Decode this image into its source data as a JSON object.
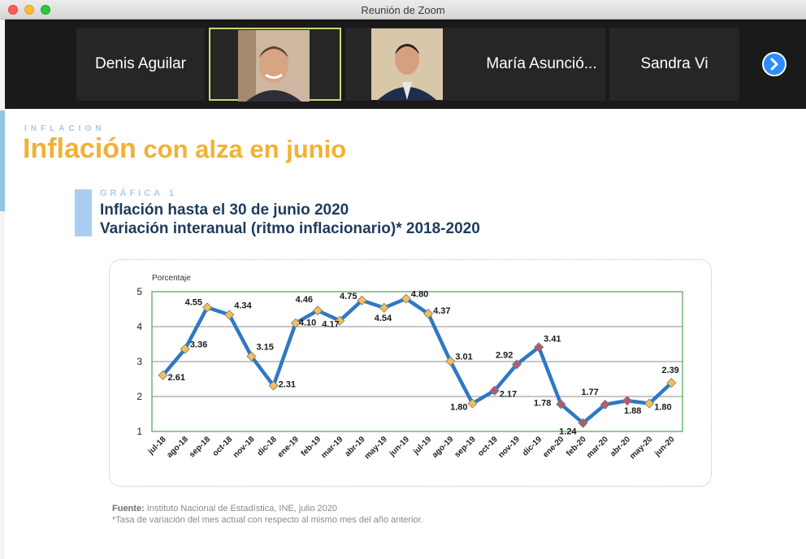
{
  "window": {
    "title": "Reunión de Zoom"
  },
  "participants": [
    {
      "name": "Denis Aguilar"
    },
    {
      "name": "",
      "video": true,
      "active": true
    },
    {
      "name": "",
      "video": true,
      "active": false
    },
    {
      "name": "María Asunció..."
    },
    {
      "name": "Sandra Vi"
    }
  ],
  "slide": {
    "kicker": "INFLACION",
    "headline_big": "Inflación",
    "headline_rest": " con alza en junio",
    "graph_label": "GRÁFICA 1",
    "title_line1": "Inflación hasta el 30 de junio 2020",
    "title_line2": "Variación interanual (ritmo inflacionario)* 2018-2020",
    "source_label": "Fuente:",
    "source_text": " Instituto Nacional de Estadística, INE, julio 2020",
    "footnote": "*Tasa de variación del mes actual con respecto al mismo mes del año anterior."
  },
  "chart_data": {
    "type": "line",
    "ylabel": "Porcentaje",
    "ylim": [
      1,
      5
    ],
    "yticks": [
      1,
      2,
      3,
      4,
      5
    ],
    "grid": true,
    "categories": [
      "jul-18",
      "ago-18",
      "sep-18",
      "oct-18",
      "nov-18",
      "dic-18",
      "ene-19",
      "feb-19",
      "mar-19",
      "abr-19",
      "may-19",
      "jun-19",
      "jul-19",
      "ago-19",
      "sep-19",
      "oct-19",
      "nov-19",
      "dic-19",
      "ene-20",
      "feb-20",
      "mar-20",
      "abr-20",
      "may-20",
      "jun-20"
    ],
    "series": [
      {
        "values": [
          2.61,
          3.36,
          4.55,
          4.34,
          3.15,
          2.31,
          4.1,
          4.46,
          4.17,
          4.75,
          4.54,
          4.8,
          4.37,
          3.01,
          1.8,
          2.17,
          2.92,
          3.41,
          1.78,
          1.24,
          1.77,
          1.88,
          1.8,
          2.39
        ],
        "labels": [
          "2.61",
          "3.36",
          "4.55",
          "4.34",
          "3.15",
          "2.31",
          "4.10",
          "4.46",
          "4.17",
          "4.75",
          "4.54",
          "4.80",
          "4.37",
          "3.01",
          "1.80",
          "2.17",
          "2.92",
          "3.41",
          "1.78",
          "1.24",
          "1.77",
          "1.88",
          "1.80",
          "2.39"
        ],
        "color": "#2f78c4",
        "marker_colors": [
          "#f2c05a",
          "#f2c05a",
          "#f2c05a",
          "#f2c05a",
          "#f2c05a",
          "#f2c05a",
          "#f2c05a",
          "#f2c05a",
          "#f2c05a",
          "#f2c05a",
          "#f2c05a",
          "#f2c05a",
          "#f2c05a",
          "#f2c05a",
          "#f2c05a",
          "#b45a6e",
          "#b45a6e",
          "#b45a6e",
          "#b45a6e",
          "#b45a6e",
          "#b45a6e",
          "#b45a6e",
          "#f2c05a",
          "#f2c05a"
        ]
      }
    ]
  },
  "colors": {
    "headline": "#f2b134",
    "title": "#1d3c5e",
    "plot_border": "#4aa35a",
    "zoom_blue": "#2d8cff"
  }
}
